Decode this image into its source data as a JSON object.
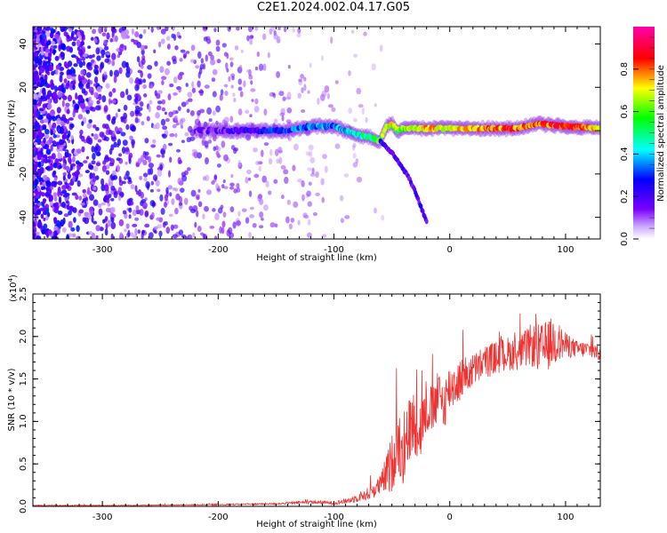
{
  "title": "C2E1.2024.002.04.17.G05",
  "chart_data": [
    {
      "type": "heatmap",
      "name": "spectrogram",
      "xlabel": "Height of straight line (km)",
      "ylabel": "Frequency (Hz)",
      "xlim": [
        -360,
        130
      ],
      "ylim": [
        -50,
        48
      ],
      "xticks": [
        -300,
        -200,
        -100,
        0,
        100
      ],
      "yticks": [
        -40,
        -20,
        0,
        20,
        40
      ],
      "colorbar": {
        "label": "Normalized spectral amplitude",
        "range": [
          0,
          1
        ],
        "ticks": [
          "0.0",
          "0.2",
          "0.4",
          "0.6",
          "0.8"
        ],
        "colors": [
          "#ffffff",
          "#7b00ff",
          "#0000ff",
          "#00ffff",
          "#00ff00",
          "#ffff00",
          "#ff0000",
          "#ff00aa"
        ]
      },
      "ridge": {
        "x": [
          -220,
          -200,
          -160,
          -140,
          -120,
          -100,
          -90,
          -80,
          -70,
          -60,
          -55,
          -50,
          -45,
          -40,
          -30,
          -20,
          0,
          20,
          40,
          60,
          70,
          80,
          100,
          130
        ],
        "frequency": [
          0,
          0,
          0,
          0,
          2,
          2,
          0,
          -2,
          -3,
          -5,
          2,
          3,
          0,
          1,
          1,
          1,
          1,
          1,
          1,
          1,
          3,
          3,
          2,
          1
        ],
        "amplitude": [
          0.15,
          0.15,
          0.25,
          0.3,
          0.35,
          0.35,
          0.4,
          0.45,
          0.5,
          0.6,
          0.65,
          0.7,
          0.6,
          0.65,
          0.7,
          0.75,
          0.7,
          0.75,
          0.8,
          0.8,
          0.75,
          0.8,
          0.85,
          0.7
        ]
      },
      "branch": {
        "x": [
          -60,
          -50,
          -40,
          -35,
          -30,
          -25,
          -20
        ],
        "frequency": [
          -5,
          -10,
          -18,
          -22,
          -28,
          -35,
          -42
        ]
      }
    },
    {
      "type": "line",
      "name": "snr",
      "xlabel": "Height of straight line (km)",
      "ylabel": "SNR (10 * v/v)",
      "scale_label": "(x10",
      "scale_exp": "4",
      "scale_close": ")",
      "xlim": [
        -360,
        130
      ],
      "ylim": [
        0,
        2.5
      ],
      "xticks": [
        -300,
        -200,
        -100,
        0,
        100
      ],
      "yticks": [
        "0.0",
        "0.5",
        "1.0",
        "1.5",
        "2.0",
        "2.5"
      ],
      "series": [
        {
          "color": "#ee3333",
          "x": [
            -360,
            -300,
            -250,
            -200,
            -150,
            -120,
            -100,
            -90,
            -80,
            -70,
            -60,
            -50,
            -45,
            -40,
            -35,
            -30,
            -25,
            -20,
            -15,
            -10,
            -5,
            0,
            10,
            20,
            30,
            40,
            50,
            60,
            70,
            80,
            90,
            100,
            110,
            120,
            130
          ],
          "y": [
            0.01,
            0.01,
            0.015,
            0.02,
            0.03,
            0.05,
            0.04,
            0.06,
            0.1,
            0.15,
            0.25,
            0.5,
            0.8,
            0.6,
            0.9,
            1.0,
            0.9,
            1.2,
            1.1,
            1.3,
            1.2,
            1.4,
            1.5,
            1.6,
            1.7,
            1.75,
            1.8,
            1.8,
            1.9,
            1.85,
            1.95,
            1.9,
            1.85,
            1.85,
            1.8
          ],
          "jitter": [
            0.005,
            0.005,
            0.005,
            0.008,
            0.01,
            0.02,
            0.02,
            0.03,
            0.05,
            0.08,
            0.12,
            0.35,
            0.4,
            0.4,
            0.4,
            0.4,
            0.35,
            0.35,
            0.3,
            0.3,
            0.3,
            0.3,
            0.25,
            0.2,
            0.2,
            0.2,
            0.2,
            0.2,
            0.25,
            0.3,
            0.3,
            0.15,
            0.1,
            0.1,
            0.1
          ]
        }
      ]
    }
  ]
}
